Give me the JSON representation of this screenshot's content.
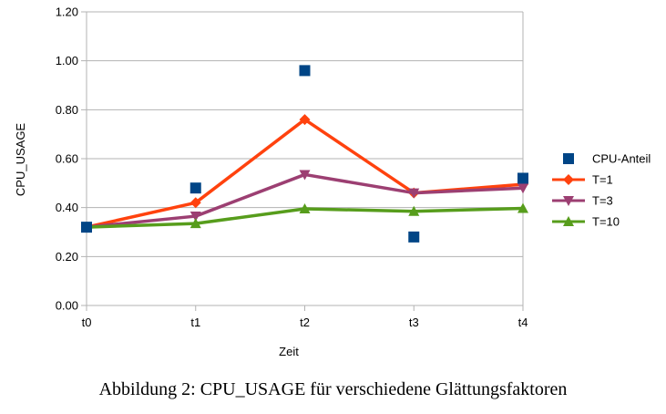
{
  "caption": "Abbildung 2: CPU_USAGE für verschiedene Glättungsfaktoren",
  "chart_data": {
    "type": "line",
    "categories": [
      "t0",
      "t1",
      "t2",
      "t3",
      "t4"
    ],
    "xlabel": "Zeit",
    "ylabel": "CPU_USAGE",
    "ylim": [
      0,
      1.2
    ],
    "yticks": [
      "0.00",
      "0.20",
      "0.40",
      "0.60",
      "0.80",
      "1.00",
      "1.20"
    ],
    "grid": "horizontal",
    "legend": "right",
    "series": [
      {
        "name": "CPU-Anteil",
        "values": [
          0.32,
          0.48,
          0.96,
          0.28,
          0.52
        ],
        "color": "#004586",
        "marker": "square",
        "line": false
      },
      {
        "name": "T=1",
        "values": [
          0.32,
          0.42,
          0.76,
          0.46,
          0.495
        ],
        "color": "#ff420e",
        "marker": "diamond",
        "line": true
      },
      {
        "name": "T=3",
        "values": [
          0.32,
          0.365,
          0.535,
          0.46,
          0.48
        ],
        "color": "#9c3f72",
        "marker": "triangle-down",
        "line": true
      },
      {
        "name": "T=10",
        "values": [
          0.32,
          0.335,
          0.395,
          0.385,
          0.397
        ],
        "color": "#579d1c",
        "marker": "triangle-up",
        "line": true
      }
    ]
  }
}
